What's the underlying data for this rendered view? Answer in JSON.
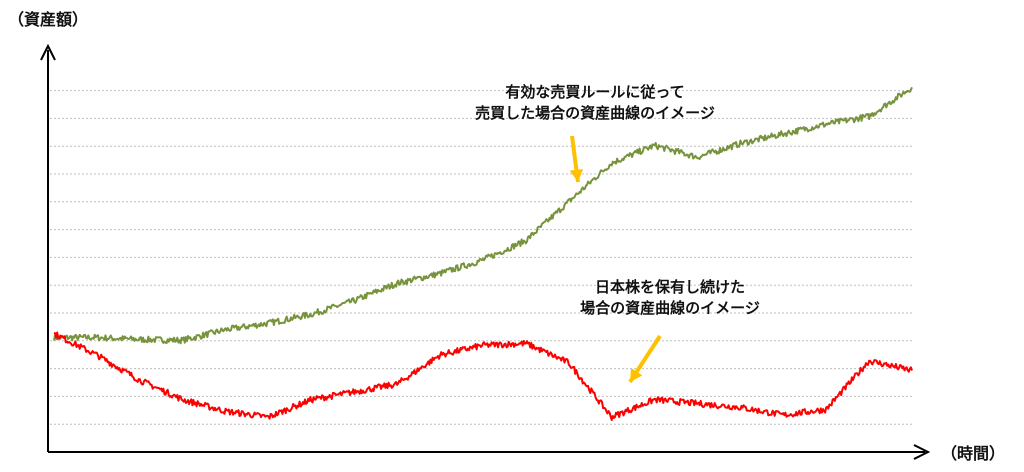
{
  "chart_data": {
    "type": "line",
    "ylabel": "（資産額）",
    "xlabel": "（時間）",
    "ylim": [
      0,
      100
    ],
    "grid": true,
    "colors": {
      "green": "#77933c",
      "red": "#ff0000",
      "arrow": "#ffc000",
      "grid": "#bfbfbf"
    },
    "series": [
      {
        "key": "green",
        "x": [
          0,
          5,
          10,
          15,
          20,
          25,
          30,
          35,
          40,
          45,
          50,
          55,
          60,
          65,
          70,
          75,
          80,
          85,
          90,
          95,
          100
        ],
        "values": [
          29.5,
          29.5,
          29,
          28.8,
          31.5,
          33.2,
          35.5,
          39,
          43.5,
          46,
          49.5,
          54.5,
          64.5,
          74.5,
          79,
          76,
          79.5,
          82,
          84.5,
          86.5,
          94
        ]
      },
      {
        "key": "red",
        "x": [
          0,
          5,
          10,
          15,
          20,
          25,
          30,
          35,
          40,
          45,
          50,
          55,
          60,
          65,
          70,
          75,
          80,
          85,
          90,
          95,
          100
        ],
        "values": [
          30.5,
          25,
          18.5,
          13.5,
          10.5,
          9,
          13.5,
          15.5,
          17.5,
          25,
          27.5,
          28,
          23,
          9,
          13.5,
          12.5,
          11.5,
          9.5,
          11,
          23.5,
          21
        ]
      }
    ],
    "annotations": [
      {
        "lines": [
          "有効な売買ルールに従って",
          "売買した場合の資産曲線のイメージ"
        ]
      },
      {
        "lines": [
          "日本株を保有し続けた",
          "場合の資産曲線のイメージ"
        ]
      }
    ]
  }
}
